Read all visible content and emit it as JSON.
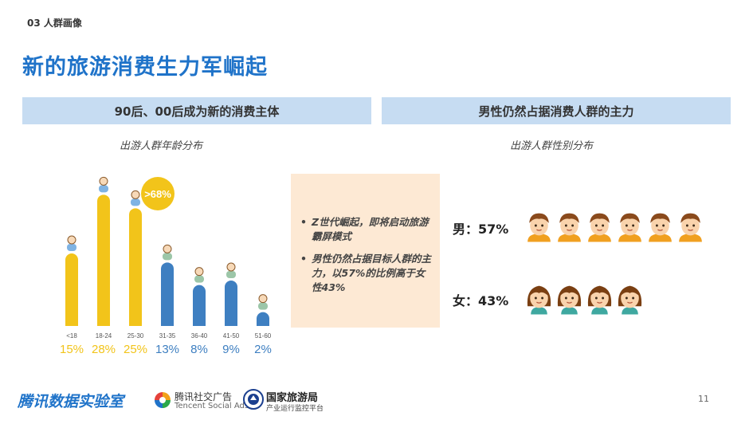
{
  "section_tag": "03 人群画像",
  "title": "新的旅游消费生力军崛起",
  "left_panel": {
    "header": "90后、00后成为新的消费主体",
    "caption": "出游人群年龄分布"
  },
  "right_panel": {
    "header": "男性仍然占据消费人群的主力",
    "caption": "出游人群性别分布"
  },
  "chart_data": {
    "type": "bar",
    "categories": [
      "<18",
      "18-24",
      "25-30",
      "31-35",
      "36-40",
      "41-50",
      "51-60"
    ],
    "values": [
      15,
      28,
      25,
      13,
      8,
      9,
      2
    ],
    "value_labels": [
      "15%",
      "28%",
      "25%",
      "13%",
      "8%",
      "9%",
      "2%"
    ],
    "bar_colors": [
      "#f2c41a",
      "#f2c41a",
      "#f2c41a",
      "#3e7fc1",
      "#3e7fc1",
      "#3e7fc1",
      "#3e7fc1"
    ],
    "badge": ">68%",
    "badge_color": "#f2c41a",
    "ylim": [
      0,
      30
    ]
  },
  "callout": {
    "points": [
      "Z世代崛起，即将启动旅游霸屏模式",
      "男性仍然占据目标人群的主力，以57%的比例高于女性43%"
    ],
    "bullet": "•"
  },
  "gender": {
    "male_label": "男：57%",
    "female_label": "女：43%",
    "male_icon_count": 6,
    "female_icon_count": 4
  },
  "footer": {
    "brand": "腾讯数据实验室",
    "tsa_zh": "腾讯社交广告",
    "tsa_en": "Tencent Social Ads",
    "cnta_zh": "国家旅游局",
    "cnta_sub": "产业运行监控平台",
    "page_number": "11"
  },
  "colors": {
    "title_blue": "#1f73c9",
    "header_bg": "#c6dcf2",
    "callout_bg": "#fde9d4",
    "yellow": "#f2c41a",
    "blue": "#3e7fc1"
  }
}
